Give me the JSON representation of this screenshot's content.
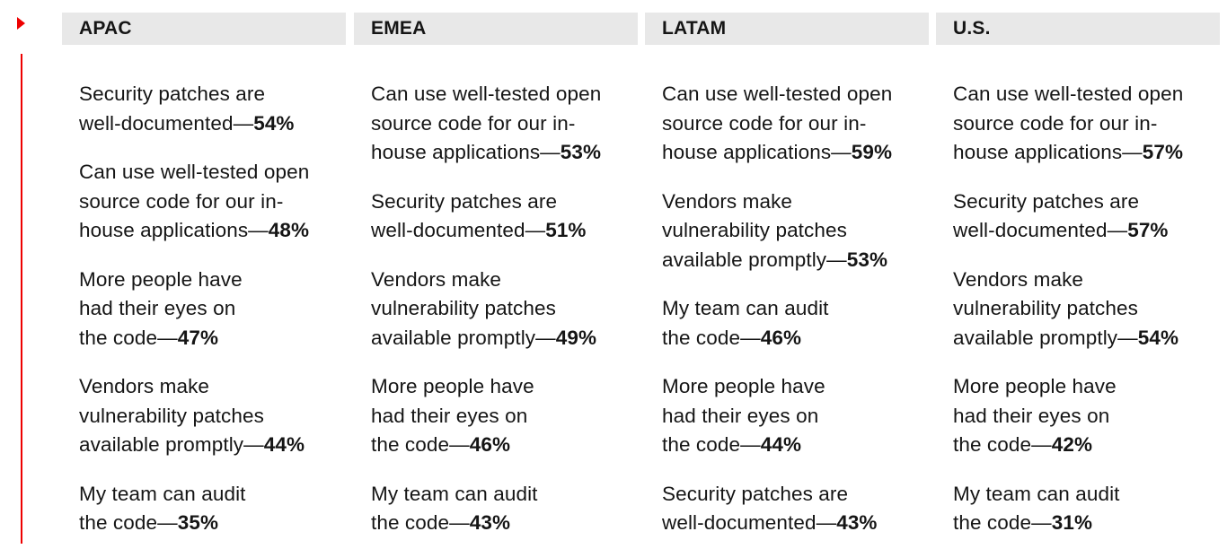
{
  "colors": {
    "accent": "#ee0000",
    "header_bg": "#e8e8e8",
    "text": "#151515"
  },
  "marker_icon": "red-triangle-icon",
  "regions": [
    {
      "name": "APAC",
      "items": [
        {
          "lines": [
            "Security patches are",
            "well-documented—"
          ],
          "pct": "54%"
        },
        {
          "lines": [
            "Can use well-tested open",
            "source code for our in-",
            "house applications—"
          ],
          "pct": "48%"
        },
        {
          "lines": [
            "More people have",
            "had their eyes on",
            "the code—"
          ],
          "pct": "47%"
        },
        {
          "lines": [
            "Vendors make",
            "vulnerability patches",
            "available promptly—"
          ],
          "pct": "44%"
        },
        {
          "lines": [
            "My team can audit",
            "the code—"
          ],
          "pct": "35%"
        }
      ]
    },
    {
      "name": "EMEA",
      "items": [
        {
          "lines": [
            "Can use well-tested open",
            "source code for our in-",
            "house applications—"
          ],
          "pct": "53%"
        },
        {
          "lines": [
            "Security patches are",
            "well-documented—"
          ],
          "pct": "51%"
        },
        {
          "lines": [
            "Vendors make",
            "vulnerability patches",
            "available promptly—"
          ],
          "pct": "49%"
        },
        {
          "lines": [
            "More people have",
            "had their eyes on",
            "the code—"
          ],
          "pct": "46%"
        },
        {
          "lines": [
            "My team can audit",
            "the code—"
          ],
          "pct": "43%"
        }
      ]
    },
    {
      "name": "LATAM",
      "items": [
        {
          "lines": [
            "Can use well-tested open",
            "source code for our in-",
            "house applications—"
          ],
          "pct": "59%"
        },
        {
          "lines": [
            "Vendors make",
            "vulnerability patches",
            "available promptly—"
          ],
          "pct": "53%"
        },
        {
          "lines": [
            "My team can audit",
            "the code—"
          ],
          "pct": "46%"
        },
        {
          "lines": [
            "More people have",
            "had their eyes on",
            "the code—"
          ],
          "pct": "44%"
        },
        {
          "lines": [
            "Security patches are",
            "well-documented—"
          ],
          "pct": "43%"
        }
      ]
    },
    {
      "name": "U.S.",
      "items": [
        {
          "lines": [
            "Can use well-tested open",
            "source code for our in-",
            "house applications—"
          ],
          "pct": "57%"
        },
        {
          "lines": [
            "Security patches are",
            "well-documented—"
          ],
          "pct": "57%"
        },
        {
          "lines": [
            "Vendors make",
            "vulnerability patches",
            "available promptly—"
          ],
          "pct": "54%"
        },
        {
          "lines": [
            "More people have",
            "had their eyes on",
            "the code—"
          ],
          "pct": "42%"
        },
        {
          "lines": [
            "My team can audit",
            "the code—"
          ],
          "pct": "31%"
        }
      ]
    }
  ]
}
